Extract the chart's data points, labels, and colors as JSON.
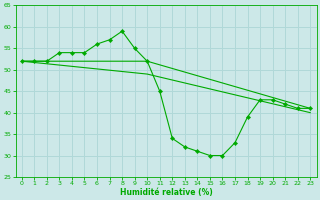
{
  "xlabel": "Humidité relative (%)",
  "xlim": [
    -0.5,
    23.5
  ],
  "ylim": [
    25,
    65
  ],
  "yticks": [
    25,
    30,
    35,
    40,
    45,
    50,
    55,
    60,
    65
  ],
  "xticks": [
    0,
    1,
    2,
    3,
    4,
    5,
    6,
    7,
    8,
    9,
    10,
    11,
    12,
    13,
    14,
    15,
    16,
    17,
    18,
    19,
    20,
    21,
    22,
    23
  ],
  "bg_color": "#cce8e8",
  "grid_color": "#aacccc",
  "line_color": "#00aa00",
  "line1_x": [
    0,
    1,
    2,
    3,
    4,
    5,
    6,
    7,
    8,
    9,
    10,
    11,
    12,
    13,
    14,
    15,
    16,
    17,
    18,
    19,
    20,
    21,
    22,
    23
  ],
  "line1_y": [
    52,
    52,
    52,
    54,
    54,
    54,
    56,
    57,
    59,
    55,
    52,
    45,
    34,
    32,
    31,
    30,
    30,
    33,
    39,
    43,
    43,
    42,
    41,
    41
  ],
  "line2_x": [
    0,
    10,
    23
  ],
  "line2_y": [
    52,
    52,
    41
  ],
  "line3_x": [
    0,
    10,
    23
  ],
  "line3_y": [
    52,
    49,
    40
  ]
}
